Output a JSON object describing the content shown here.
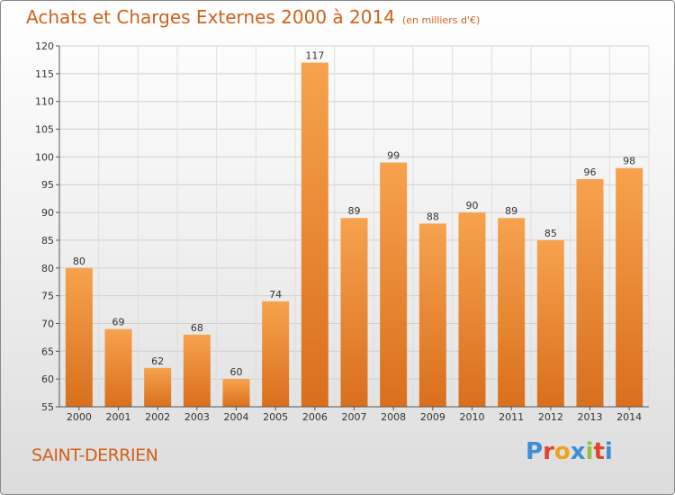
{
  "header": {
    "title": "Achats et Charges Externes 2000 à 2014",
    "unit": "(en milliers d'€)"
  },
  "footer": {
    "commune": "SAINT-DERRIEN",
    "logo_text": "Proxiti",
    "logo_colors": [
      "#3a8fd6",
      "#e0452b",
      "#f0a020",
      "#3a8fd6",
      "#8cc63e",
      "#e0452b",
      "#3a8fd6"
    ]
  },
  "chart_data": {
    "type": "bar",
    "title": "Achats et Charges Externes 2000 à 2014",
    "xlabel": "",
    "ylabel": "",
    "categories": [
      "2000",
      "2001",
      "2002",
      "2003",
      "2004",
      "2005",
      "2006",
      "2007",
      "2008",
      "2009",
      "2010",
      "2011",
      "2012",
      "2013",
      "2014"
    ],
    "values": [
      80,
      69,
      62,
      68,
      60,
      74,
      117,
      89,
      99,
      88,
      90,
      89,
      85,
      96,
      98
    ],
    "ylim": [
      55,
      120
    ],
    "yticks": [
      55,
      60,
      65,
      70,
      75,
      80,
      85,
      90,
      95,
      100,
      105,
      110,
      115,
      120
    ],
    "grid": true,
    "bar_color_top": "#f7a24e",
    "bar_color_bottom": "#d96f1c"
  }
}
